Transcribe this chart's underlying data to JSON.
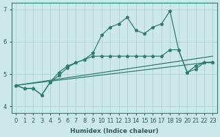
{
  "xlabel": "Humidex (Indice chaleur)",
  "bg_color": "#cce8e8",
  "grid_color": "#aacccc",
  "line_color": "#2d7a6e",
  "xlim": [
    -0.5,
    23.5
  ],
  "ylim": [
    3.8,
    7.2
  ],
  "yticks": [
    4,
    5,
    6,
    7
  ],
  "xticks": [
    0,
    1,
    2,
    3,
    4,
    5,
    6,
    7,
    8,
    9,
    10,
    11,
    12,
    13,
    14,
    15,
    16,
    17,
    18,
    19,
    20,
    21,
    22,
    23
  ],
  "line1_x": [
    0,
    23
  ],
  "line1_y": [
    4.65,
    5.38
  ],
  "line2_x": [
    0,
    23
  ],
  "line2_y": [
    4.65,
    5.55
  ],
  "series_mid_x": [
    0,
    1,
    2,
    3,
    4,
    5,
    6,
    7,
    8,
    9,
    10,
    11,
    12,
    13,
    14,
    15,
    16,
    17,
    18,
    19,
    20,
    21,
    22,
    23
  ],
  "series_mid_y": [
    4.65,
    4.55,
    4.55,
    4.35,
    4.75,
    4.95,
    5.2,
    5.35,
    5.45,
    5.55,
    5.55,
    5.55,
    5.55,
    5.55,
    5.55,
    5.55,
    5.55,
    5.55,
    5.75,
    5.75,
    5.05,
    5.15,
    5.35,
    5.35
  ],
  "series_top_x": [
    0,
    1,
    2,
    3,
    4,
    5,
    6,
    7,
    8,
    9,
    10,
    11,
    12,
    13,
    14,
    15,
    16,
    17,
    18,
    19,
    20,
    21,
    22,
    23
  ],
  "series_top_y": [
    4.65,
    4.55,
    4.55,
    4.35,
    4.75,
    5.05,
    5.25,
    5.35,
    5.45,
    5.65,
    6.2,
    6.45,
    6.55,
    6.75,
    6.35,
    6.25,
    6.45,
    6.55,
    6.95,
    5.75,
    5.05,
    5.25,
    5.35,
    5.35
  ]
}
